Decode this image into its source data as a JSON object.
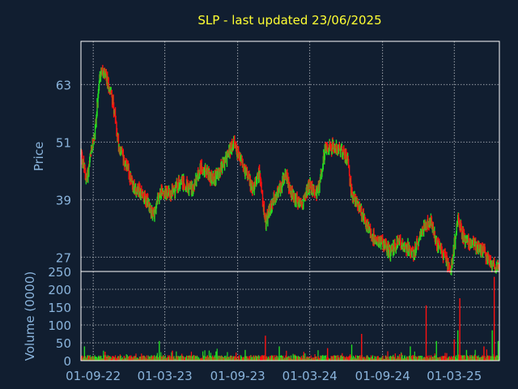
{
  "chart_data": [
    {
      "type": "candlestick",
      "title": "SLP - last updated 23/06/2025",
      "ylabel": "Price",
      "ylim": [
        24,
        72
      ],
      "yticks": [
        27,
        39,
        51,
        63
      ],
      "x_ticks": [
        "01-09-22",
        "01-03-23",
        "01-09-23",
        "01-03-24",
        "01-09-24",
        "01-03-25"
      ],
      "x_range": [
        "2022-08-01",
        "2025-06-23"
      ],
      "grid": true,
      "colors": {
        "up": "#22dd22",
        "down": "#ff1111",
        "background": "#111e30",
        "text": "#8ab4dc",
        "title": "#ffff33"
      },
      "price_path": [
        [
          "2022-08-01",
          49
        ],
        [
          "2022-08-15",
          43
        ],
        [
          "2022-09-05",
          53
        ],
        [
          "2022-09-20",
          66
        ],
        [
          "2022-10-05",
          64
        ],
        [
          "2022-10-20",
          60
        ],
        [
          "2022-11-05",
          50
        ],
        [
          "2022-11-20",
          47
        ],
        [
          "2022-12-10",
          42
        ],
        [
          "2023-01-05",
          40
        ],
        [
          "2023-02-01",
          36
        ],
        [
          "2023-02-20",
          41
        ],
        [
          "2023-03-15",
          40
        ],
        [
          "2023-04-10",
          43
        ],
        [
          "2023-05-10",
          41
        ],
        [
          "2023-06-01",
          46
        ],
        [
          "2023-07-01",
          43
        ],
        [
          "2023-08-01",
          47
        ],
        [
          "2023-08-20",
          51
        ],
        [
          "2023-09-15",
          46
        ],
        [
          "2023-10-10",
          41
        ],
        [
          "2023-10-25",
          45
        ],
        [
          "2023-11-10",
          34
        ],
        [
          "2023-12-01",
          39
        ],
        [
          "2024-01-01",
          44
        ],
        [
          "2024-01-20",
          39
        ],
        [
          "2024-02-10",
          38
        ],
        [
          "2024-03-01",
          42
        ],
        [
          "2024-03-20",
          40
        ],
        [
          "2024-04-10",
          50
        ],
        [
          "2024-05-01",
          50
        ],
        [
          "2024-05-20",
          49
        ],
        [
          "2024-06-05",
          47
        ],
        [
          "2024-06-15",
          40
        ],
        [
          "2024-07-01",
          38
        ],
        [
          "2024-07-20",
          34
        ],
        [
          "2024-08-10",
          31
        ],
        [
          "2024-09-01",
          30
        ],
        [
          "2024-09-20",
          28
        ],
        [
          "2024-10-10",
          30
        ],
        [
          "2024-11-01",
          29
        ],
        [
          "2024-11-20",
          28
        ],
        [
          "2024-12-10",
          33
        ],
        [
          "2025-01-01",
          35
        ],
        [
          "2025-01-15",
          30
        ],
        [
          "2025-02-05",
          27
        ],
        [
          "2025-02-20",
          24
        ],
        [
          "2025-03-10",
          35
        ],
        [
          "2025-03-25",
          31
        ],
        [
          "2025-04-10",
          30
        ],
        [
          "2025-05-05",
          29
        ],
        [
          "2025-05-25",
          27
        ],
        [
          "2025-06-10",
          25
        ],
        [
          "2025-06-23",
          25
        ]
      ]
    },
    {
      "type": "bar",
      "ylabel": "Volume (0000)",
      "ylim": [
        0,
        250
      ],
      "yticks": [
        0,
        50,
        100,
        150,
        200,
        250
      ],
      "x_ticks": [
        "01-09-22",
        "01-03-23",
        "01-09-23",
        "01-03-24",
        "01-09-24",
        "01-03-25"
      ],
      "grid": true,
      "typical_volume": 12,
      "spikes": [
        [
          "2022-08-10",
          40
        ],
        [
          "2022-10-01",
          25
        ],
        [
          "2023-02-15",
          55
        ],
        [
          "2023-03-20",
          28
        ],
        [
          "2023-09-20",
          30
        ],
        [
          "2023-11-10",
          70
        ],
        [
          "2023-12-15",
          40
        ],
        [
          "2024-04-15",
          35
        ],
        [
          "2024-06-15",
          45
        ],
        [
          "2024-07-10",
          75
        ],
        [
          "2024-11-10",
          40
        ],
        [
          "2024-12-20",
          155
        ],
        [
          "2025-01-15",
          55
        ],
        [
          "2025-03-01",
          60
        ],
        [
          "2025-03-10",
          85
        ],
        [
          "2025-03-15",
          175
        ],
        [
          "2025-04-01",
          30
        ],
        [
          "2025-05-15",
          40
        ],
        [
          "2025-06-05",
          85
        ],
        [
          "2025-06-10",
          235
        ],
        [
          "2025-06-20",
          55
        ]
      ]
    }
  ]
}
